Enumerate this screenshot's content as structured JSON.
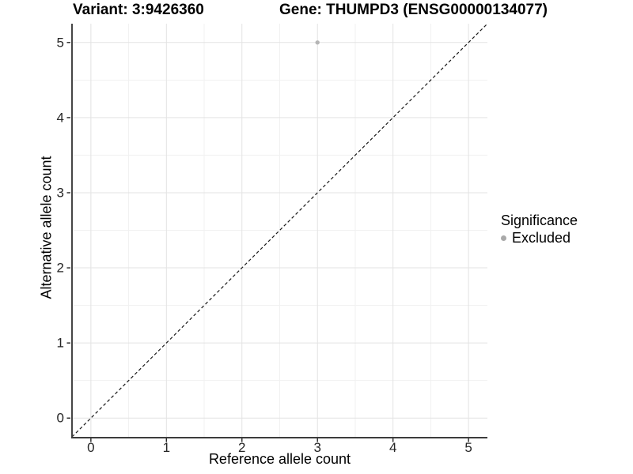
{
  "chart_data": {
    "type": "scatter",
    "title_variant": "Variant: 3:9426360",
    "title_gene": "Gene: THUMPD3 (ENSG00000134077)",
    "xlabel": "Reference allele count",
    "ylabel": "Alternative allele count",
    "xlim": [
      -0.25,
      5.25
    ],
    "ylim": [
      -0.25,
      5.25
    ],
    "x_ticks": [
      0,
      1,
      2,
      3,
      4,
      5
    ],
    "y_ticks": [
      0,
      1,
      2,
      3,
      4,
      5
    ],
    "grid": "major and minor gridlines, light grey on white",
    "points": [
      {
        "x": 3,
        "y": 5,
        "series": "Excluded"
      }
    ],
    "reference_line": {
      "slope": 1,
      "intercept": 0,
      "style": "dashed",
      "color": "#1a1a1a"
    },
    "legend": {
      "title": "Significance",
      "position": "right",
      "items": [
        {
          "label": "Excluded",
          "color": "#a9a9a9"
        }
      ]
    },
    "colors": {
      "point": "#b5b5b5",
      "grid_major": "#e3e3e3",
      "grid_minor": "#f1f1f1",
      "axis_line": "#3c3c3c",
      "tick_text": "#262626"
    }
  }
}
